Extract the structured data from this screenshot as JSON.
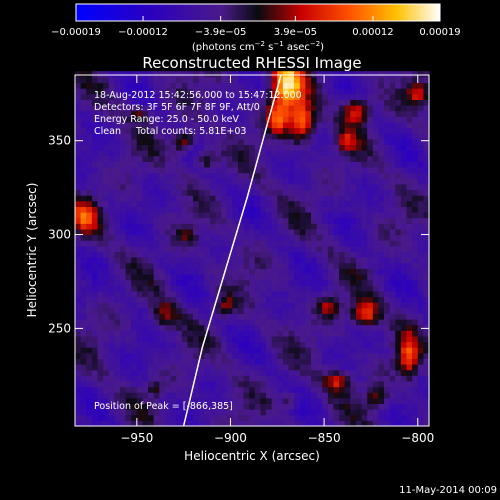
{
  "chart_data": {
    "type": "heatmap",
    "title": "Reconstructed RHESSI Image",
    "xlabel": "Heliocentric X (arcsec)",
    "ylabel": "Heliocentric Y (arcsec)",
    "xlim": [
      -983,
      -794
    ],
    "ylim": [
      198,
      385
    ],
    "x_ticks": [
      -950,
      -900,
      -850,
      -800
    ],
    "y_ticks": [
      250,
      300,
      350
    ],
    "x_tick_labels": [
      "−950",
      "−900",
      "−850",
      "−800"
    ],
    "y_tick_labels": [
      "250",
      "300",
      "350"
    ],
    "colorbar": {
      "min": -0.00019,
      "max": 0.00019,
      "tick_values": [
        -0.00019,
        -0.00012,
        -3.9e-05,
        3.9e-05,
        0.00012,
        0.00019
      ],
      "tick_labels": [
        "−0.00019",
        "−0.00012",
        "−3.9e−05",
        "3.9e−05",
        "0.00012",
        "0.00019"
      ],
      "unit_prefix": "(photons cm",
      "unit_exp1": "−2",
      "unit_mid": " s",
      "unit_exp2": "−1",
      "unit_mid2": " asec",
      "unit_exp3": "−2",
      "unit_suffix": ")"
    },
    "annotations": [
      "18-Aug-2012 15:42:56.000 to 15:47:12.000",
      "Detectors: 3F 5F 6F 7F 8F 9F, Att/0",
      "Energy Range: 25.0 - 50.0 keV",
      "Clean     Total counts: 5.81E+03"
    ],
    "peak_label": "Position of Peak = [-866,385]",
    "peak": [
      -866,
      385
    ],
    "limb_curve": [
      [
        -925,
        198
      ],
      [
        -915,
        240
      ],
      [
        -903,
        280
      ],
      [
        -891,
        320
      ],
      [
        -880,
        360
      ],
      [
        -873,
        385
      ]
    ],
    "blobs": [
      {
        "x": -870,
        "y": 380,
        "sx": 6,
        "sy": 9,
        "amp": 1.0
      },
      {
        "x": -862,
        "y": 360,
        "sx": 5,
        "sy": 7,
        "amp": 0.8
      },
      {
        "x": -875,
        "y": 362,
        "sx": 4,
        "sy": 6,
        "amp": 0.6
      },
      {
        "x": -833,
        "y": 366,
        "sx": 5,
        "sy": 5,
        "amp": 0.65
      },
      {
        "x": -838,
        "y": 350,
        "sx": 4,
        "sy": 4,
        "amp": 0.4
      },
      {
        "x": -800,
        "y": 375,
        "sx": 4,
        "sy": 4,
        "amp": 0.5
      },
      {
        "x": -925,
        "y": 350,
        "sx": 4,
        "sy": 4,
        "amp": 0.55
      },
      {
        "x": -913,
        "y": 340,
        "sx": 4,
        "sy": 4,
        "amp": 0.45
      },
      {
        "x": -948,
        "y": 365,
        "sx": 4,
        "sy": 3,
        "amp": 0.35
      },
      {
        "x": -978,
        "y": 310,
        "sx": 5,
        "sy": 6,
        "amp": 0.55
      },
      {
        "x": -923,
        "y": 300,
        "sx": 3,
        "sy": 3,
        "amp": 0.3
      },
      {
        "x": -935,
        "y": 257,
        "sx": 5,
        "sy": 5,
        "amp": 0.4
      },
      {
        "x": -903,
        "y": 262,
        "sx": 4,
        "sy": 4,
        "amp": 0.35
      },
      {
        "x": -847,
        "y": 262,
        "sx": 4,
        "sy": 4,
        "amp": 0.45
      },
      {
        "x": -828,
        "y": 258,
        "sx": 5,
        "sy": 5,
        "amp": 0.7
      },
      {
        "x": -805,
        "y": 235,
        "sx": 4,
        "sy": 8,
        "amp": 0.6
      },
      {
        "x": -843,
        "y": 222,
        "sx": 5,
        "sy": 4,
        "amp": 0.5
      },
      {
        "x": -822,
        "y": 213,
        "sx": 4,
        "sy": 4,
        "amp": 0.4
      },
      {
        "x": -868,
        "y": 212,
        "sx": 3,
        "sy": 3,
        "amp": 0.3
      },
      {
        "x": -940,
        "y": 218,
        "sx": 3,
        "sy": 3,
        "amp": 0.25
      }
    ]
  },
  "footer": {
    "timestamp": "11-May-2014 00:09"
  }
}
